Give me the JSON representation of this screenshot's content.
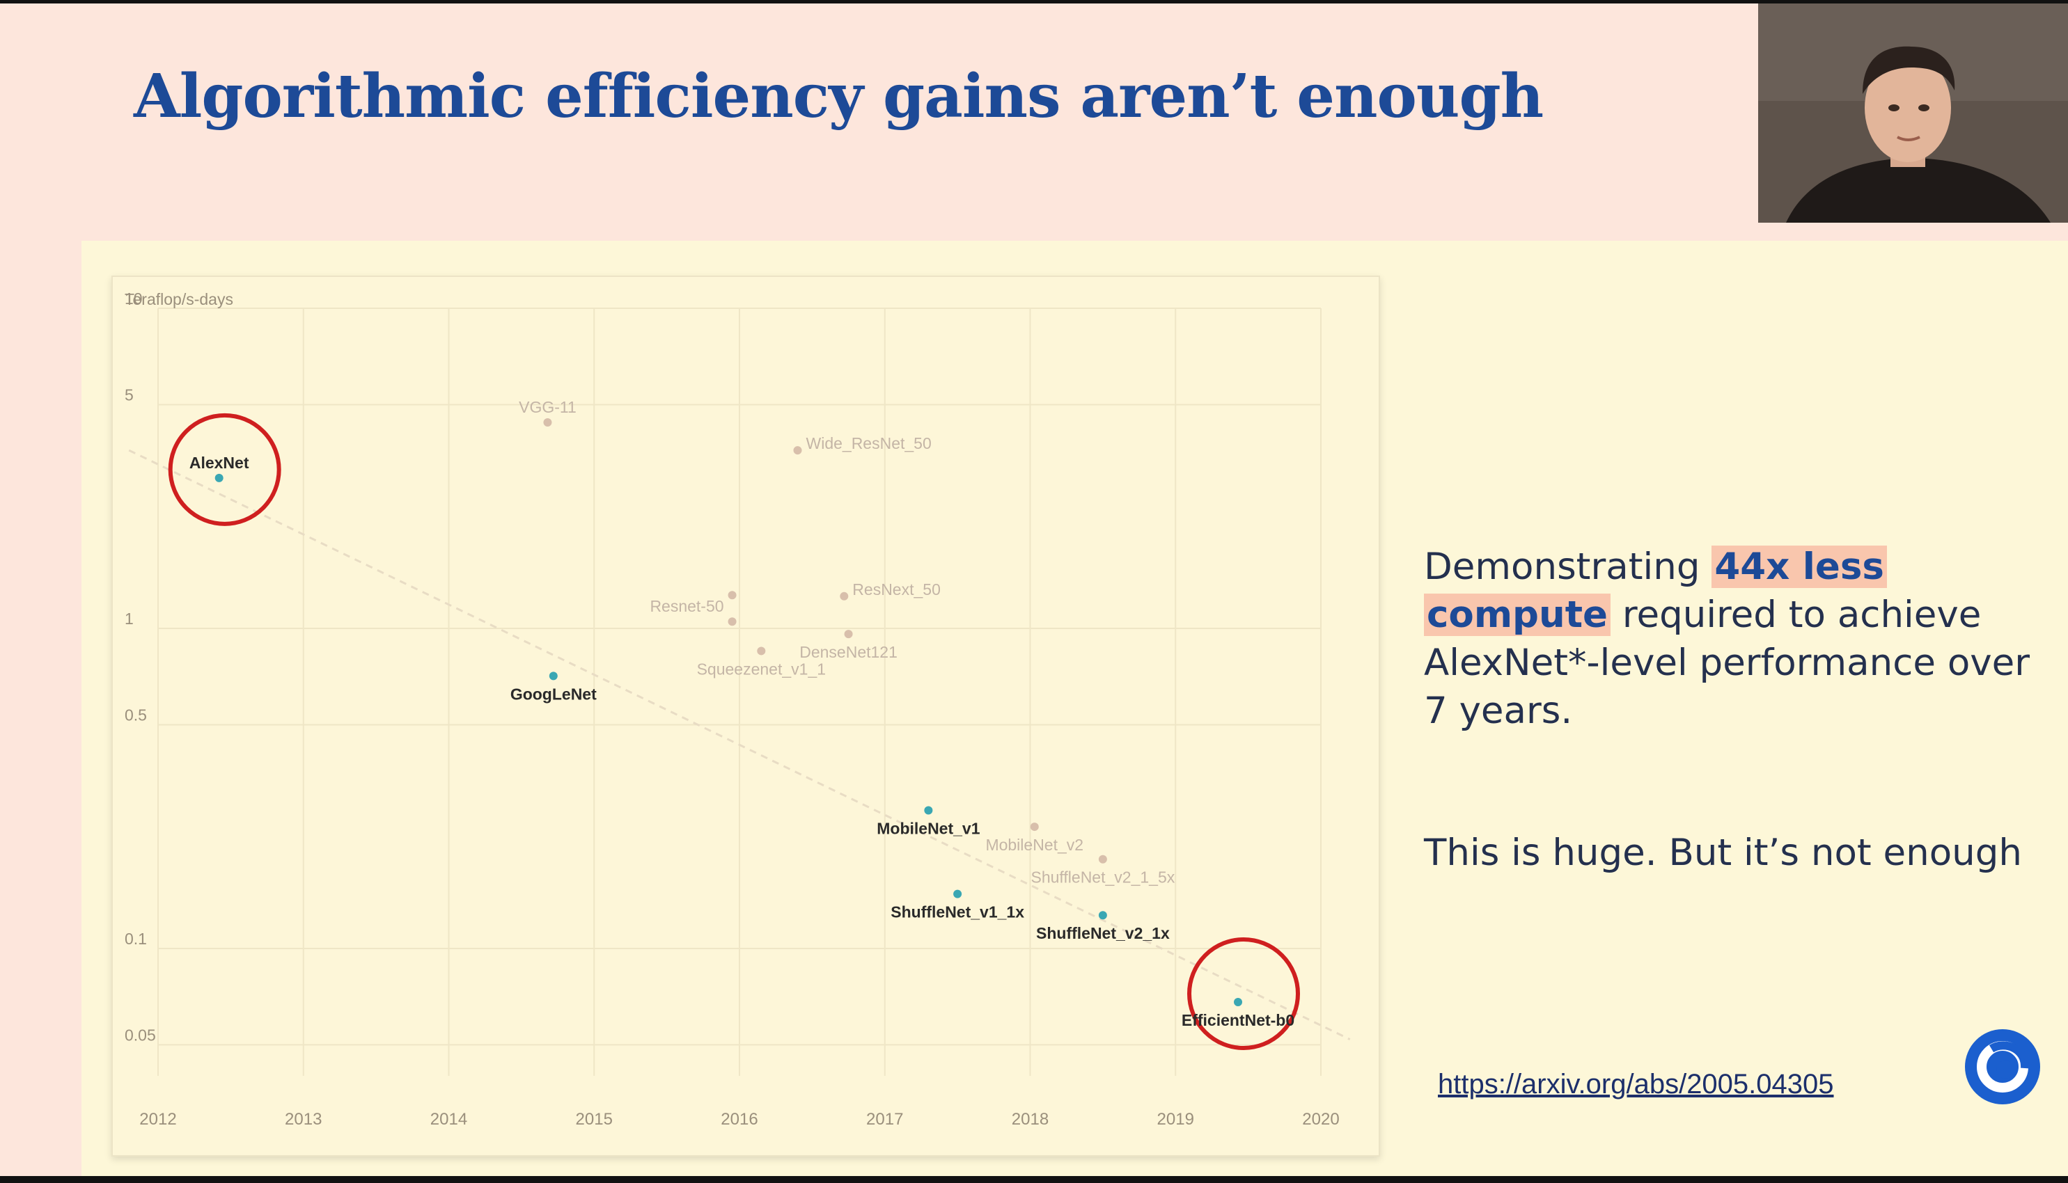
{
  "slide": {
    "title": "Algorithmic efficiency gains aren’t enough",
    "description": {
      "prefix": "Demonstrating ",
      "highlight1": "44x less",
      "highlight2": "compute",
      "suffix": " required to achieve AlexNet*-level performance over 7 years."
    },
    "tagline": "This is huge. But it’s not enough",
    "link": "https://arxiv.org/abs/2005.04305",
    "logo_icon": "deepmind-logo-icon",
    "webcam": "speaker-video-icon"
  },
  "colors": {
    "title": "#1d4a97",
    "highlight_bg": "#f9c6ad",
    "circle": "#cf1f1f",
    "point_teal": "#3aa7b3",
    "point_beige": "#d8bfab"
  },
  "chart_data": {
    "type": "scatter",
    "ylabel": "Teraflop/s-days",
    "yscale": "log",
    "ylim": [
      0.04,
      10
    ],
    "xlim": [
      2012,
      2020
    ],
    "x_ticks": [
      "2012",
      "2013",
      "2014",
      "2015",
      "2016",
      "2017",
      "2018",
      "2019",
      "2020"
    ],
    "y_ticks": [
      {
        "value": 10,
        "label": "10"
      },
      {
        "value": 5,
        "label": "5"
      },
      {
        "value": 1,
        "label": "1"
      },
      {
        "value": 0.5,
        "label": "0.5"
      },
      {
        "value": 0.1,
        "label": "0.1"
      },
      {
        "value": 0.05,
        "label": "0.05"
      }
    ],
    "grid": true,
    "trend_line": {
      "from": [
        2011.8,
        3.6
      ],
      "to": [
        2020.2,
        0.052
      ]
    },
    "points": [
      {
        "name": "AlexNet",
        "x": 2012.42,
        "y": 2.95,
        "highlight": true,
        "circled": true,
        "label_pos": "above"
      },
      {
        "name": "VGG-11",
        "x": 2014.68,
        "y": 4.4,
        "highlight": false,
        "label_pos": "above"
      },
      {
        "name": "Wide_ResNet_50",
        "x": 2016.4,
        "y": 3.6,
        "highlight": false,
        "label_pos": "right"
      },
      {
        "name": "Resnet-50",
        "x": 2015.95,
        "y": 1.27,
        "highlight": false,
        "label_pos": "left"
      },
      {
        "name": "",
        "x": 2015.95,
        "y": 1.05,
        "highlight": false,
        "label_pos": "none"
      },
      {
        "name": "ResNext_50",
        "x": 2016.72,
        "y": 1.26,
        "highlight": false,
        "label_pos": "right"
      },
      {
        "name": "DenseNet121",
        "x": 2016.75,
        "y": 0.96,
        "highlight": false,
        "label_pos": "below"
      },
      {
        "name": "Squeezenet_v1_1",
        "x": 2016.15,
        "y": 0.85,
        "highlight": false,
        "label_pos": "below"
      },
      {
        "name": "GoogLeNet",
        "x": 2014.72,
        "y": 0.71,
        "highlight": true,
        "label_pos": "below"
      },
      {
        "name": "MobileNet_v1",
        "x": 2017.3,
        "y": 0.27,
        "highlight": true,
        "label_pos": "below"
      },
      {
        "name": "MobileNet_v2",
        "x": 2018.03,
        "y": 0.24,
        "highlight": false,
        "label_pos": "below"
      },
      {
        "name": "ShuffleNet_v2_1_5x",
        "x": 2018.5,
        "y": 0.19,
        "highlight": false,
        "label_pos": "below"
      },
      {
        "name": "ShuffleNet_v1_1x",
        "x": 2017.5,
        "y": 0.148,
        "highlight": true,
        "label_pos": "below"
      },
      {
        "name": "ShuffleNet_v2_1x",
        "x": 2018.5,
        "y": 0.127,
        "highlight": true,
        "label_pos": "below"
      },
      {
        "name": "EfficientNet-b0",
        "x": 2019.43,
        "y": 0.068,
        "highlight": true,
        "circled": true,
        "label_pos": "below"
      }
    ]
  }
}
